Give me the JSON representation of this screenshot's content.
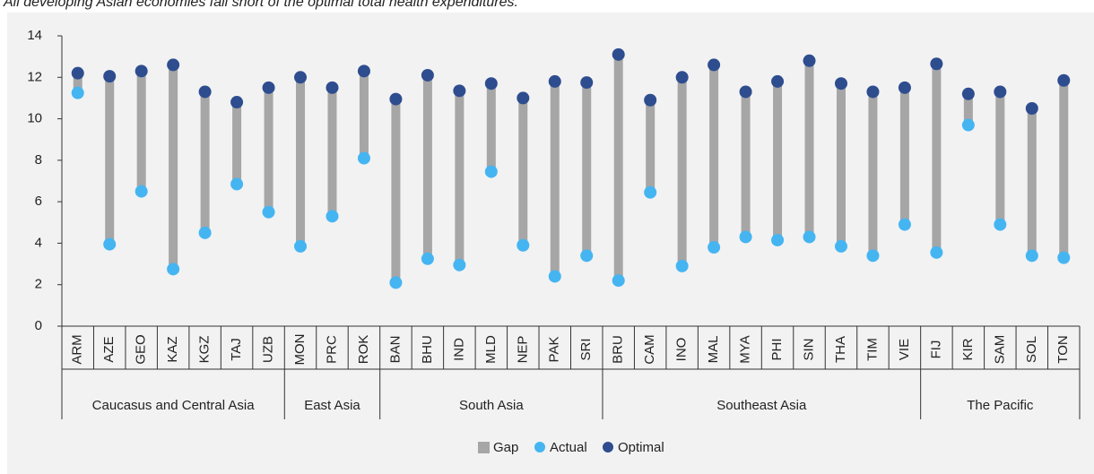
{
  "chart_data": {
    "type": "dumbbell",
    "title": "All developing Asian economies fall short of the optimal total health expenditures.",
    "groups": [
      {
        "name": "Caucasus and Central Asia",
        "categories": [
          "ARM",
          "AZE",
          "GEO",
          "KAZ",
          "KGZ",
          "TAJ",
          "UZB"
        ]
      },
      {
        "name": "East Asia",
        "categories": [
          "MON",
          "PRC",
          "ROK"
        ]
      },
      {
        "name": "South Asia",
        "categories": [
          "BAN",
          "BHU",
          "IND",
          "MLD",
          "NEP",
          "PAK",
          "SRI"
        ]
      },
      {
        "name": "Southeast Asia",
        "categories": [
          "BRU",
          "CAM",
          "INO",
          "MAL",
          "MYA",
          "PHI",
          "SIN",
          "THA",
          "TIM",
          "VIE"
        ]
      },
      {
        "name": "The Pacific",
        "categories": [
          "FIJ",
          "KIR",
          "SAM",
          "SOL",
          "TON"
        ]
      }
    ],
    "series": [
      {
        "name": "Gap",
        "color": "#a6a6a6",
        "values": [
          0.95,
          8.1,
          5.8,
          9.85,
          6.8,
          3.95,
          6.0,
          8.15,
          6.2,
          4.2,
          8.85,
          8.85,
          8.4,
          4.25,
          7.1,
          9.4,
          8.35,
          10.9,
          4.45,
          9.1,
          8.8,
          7.0,
          7.65,
          8.5,
          7.85,
          7.9,
          6.6,
          9.1,
          1.5,
          6.4,
          7.1,
          8.55
        ]
      },
      {
        "name": "Actual",
        "color": "#45b5f2",
        "values": [
          11.25,
          3.95,
          6.5,
          2.75,
          4.5,
          6.85,
          5.5,
          3.85,
          5.3,
          8.1,
          2.1,
          3.25,
          2.95,
          7.45,
          3.9,
          2.4,
          3.4,
          2.2,
          6.45,
          2.9,
          3.8,
          4.3,
          4.15,
          4.3,
          3.85,
          3.4,
          4.9,
          3.55,
          9.7,
          4.9,
          3.4,
          3.3
        ]
      },
      {
        "name": "Optimal",
        "color": "#2e4d8f",
        "values": [
          12.2,
          12.05,
          12.3,
          12.6,
          11.3,
          10.8,
          11.5,
          12.0,
          11.5,
          12.3,
          10.95,
          12.1,
          11.35,
          11.7,
          11.0,
          11.8,
          11.75,
          13.1,
          10.9,
          12.0,
          12.6,
          11.3,
          11.8,
          12.8,
          11.7,
          11.3,
          11.5,
          12.65,
          11.2,
          11.3,
          10.5,
          11.85
        ]
      }
    ],
    "ylim": [
      0,
      14
    ],
    "yticks": [
      0,
      2,
      4,
      6,
      8,
      10,
      12,
      14
    ]
  }
}
